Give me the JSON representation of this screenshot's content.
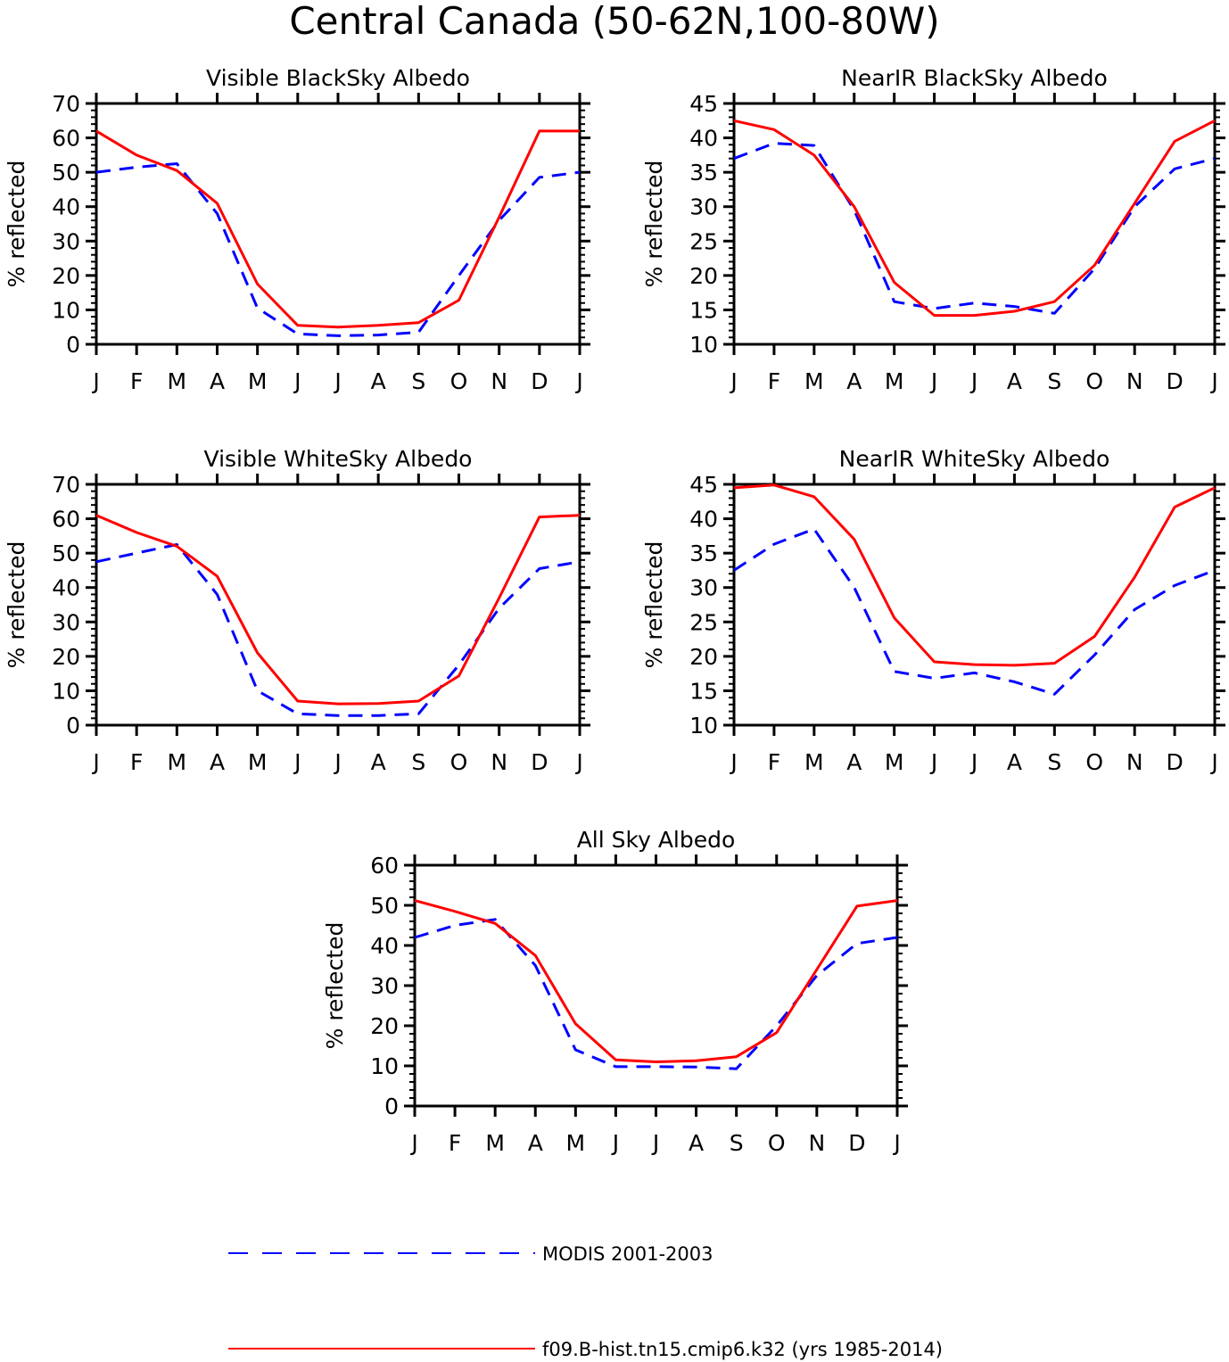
{
  "title": "Central Canada (50-62N,100-80W)",
  "legend": [
    {
      "label": "MODIS 2001-2003",
      "color": "#0000ff",
      "dash": true
    },
    {
      "label": "f09.B-hist.tn15.cmip6.k32 (yrs 1985-2014)",
      "color": "#ff0000",
      "dash": false
    }
  ],
  "chart_data": [
    {
      "type": "line",
      "title": "Visible BlackSky Albedo",
      "ylabel": "% reflected",
      "xlabel": "",
      "categories": [
        "J",
        "F",
        "M",
        "A",
        "M",
        "J",
        "J",
        "A",
        "S",
        "O",
        "N",
        "D",
        "J"
      ],
      "ylim": [
        0,
        70
      ],
      "yticks": [
        0,
        10,
        20,
        30,
        40,
        50,
        60,
        70
      ],
      "series": [
        {
          "name": "MODIS 2001-2003",
          "color": "#0000ff",
          "dash": true,
          "values": [
            50,
            51.5,
            52.5,
            38,
            10.5,
            3,
            2.5,
            2.7,
            3.5,
            20,
            36,
            48.5,
            50
          ]
        },
        {
          "name": "f09.B-hist.tn15.cmip6.k32 (yrs 1985-2014)",
          "color": "#ff0000",
          "dash": false,
          "values": [
            62,
            55,
            50.5,
            41,
            17.5,
            5.5,
            5,
            5.5,
            6.3,
            12.8,
            37,
            62,
            62
          ]
        }
      ]
    },
    {
      "type": "line",
      "title": "NearIR BlackSky Albedo",
      "ylabel": "% reflected",
      "xlabel": "",
      "categories": [
        "J",
        "F",
        "M",
        "A",
        "M",
        "J",
        "J",
        "A",
        "S",
        "O",
        "N",
        "D",
        "J"
      ],
      "ylim": [
        10,
        45
      ],
      "yticks": [
        10,
        15,
        20,
        25,
        30,
        35,
        40,
        45
      ],
      "series": [
        {
          "name": "MODIS 2001-2003",
          "color": "#0000ff",
          "dash": true,
          "values": [
            37,
            39.2,
            38.9,
            29.5,
            16.2,
            15.2,
            16,
            15.5,
            14.5,
            21,
            30,
            35.5,
            37
          ]
        },
        {
          "name": "f09.B-hist.tn15.cmip6.k32 (yrs 1985-2014)",
          "color": "#ff0000",
          "dash": false,
          "values": [
            42.5,
            41.2,
            37.5,
            30,
            19,
            14.2,
            14.2,
            14.8,
            16.2,
            21.5,
            30.5,
            39.5,
            42.5
          ]
        }
      ]
    },
    {
      "type": "line",
      "title": "Visible WhiteSky Albedo",
      "ylabel": "% reflected",
      "xlabel": "",
      "categories": [
        "J",
        "F",
        "M",
        "A",
        "M",
        "J",
        "J",
        "A",
        "S",
        "O",
        "N",
        "D",
        "J"
      ],
      "ylim": [
        0,
        70
      ],
      "yticks": [
        0,
        10,
        20,
        30,
        40,
        50,
        60,
        70
      ],
      "series": [
        {
          "name": "MODIS 2001-2003",
          "color": "#0000ff",
          "dash": true,
          "values": [
            47.5,
            50,
            52.5,
            38,
            10,
            3.3,
            2.8,
            2.8,
            3.3,
            17.5,
            34,
            45.5,
            47.5
          ]
        },
        {
          "name": "f09.B-hist.tn15.cmip6.k32 (yrs 1985-2014)",
          "color": "#ff0000",
          "dash": false,
          "values": [
            61,
            56,
            52,
            43.3,
            21,
            7,
            6.2,
            6.3,
            7,
            14.3,
            37,
            60.5,
            61
          ]
        }
      ]
    },
    {
      "type": "line",
      "title": "NearIR WhiteSky Albedo",
      "ylabel": "% reflected",
      "xlabel": "",
      "categories": [
        "J",
        "F",
        "M",
        "A",
        "M",
        "J",
        "J",
        "A",
        "S",
        "O",
        "N",
        "D",
        "J"
      ],
      "ylim": [
        10,
        45
      ],
      "yticks": [
        10,
        15,
        20,
        25,
        30,
        35,
        40,
        45
      ],
      "series": [
        {
          "name": "MODIS 2001-2003",
          "color": "#0000ff",
          "dash": true,
          "values": [
            32.5,
            36.3,
            38.5,
            30,
            17.8,
            16.8,
            17.6,
            16.3,
            14.5,
            20.2,
            26.8,
            30.3,
            32.5
          ]
        },
        {
          "name": "f09.B-hist.tn15.cmip6.k32 (yrs 1985-2014)",
          "color": "#ff0000",
          "dash": false,
          "values": [
            44.5,
            44.9,
            43.2,
            37,
            25.6,
            19.2,
            18.8,
            18.7,
            19,
            22.9,
            31.5,
            41.7,
            44.5
          ]
        }
      ]
    },
    {
      "type": "line",
      "title": "All Sky Albedo",
      "ylabel": "% reflected",
      "xlabel": "",
      "categories": [
        "J",
        "F",
        "M",
        "A",
        "M",
        "J",
        "J",
        "A",
        "S",
        "O",
        "N",
        "D",
        "J"
      ],
      "ylim": [
        0,
        60
      ],
      "yticks": [
        0,
        10,
        20,
        30,
        40,
        50,
        60
      ],
      "series": [
        {
          "name": "MODIS 2001-2003",
          "color": "#0000ff",
          "dash": true,
          "values": [
            42,
            45,
            46.5,
            35,
            14,
            9.8,
            9.8,
            9.7,
            9.3,
            20,
            32.5,
            40.5,
            42
          ]
        },
        {
          "name": "f09.B-hist.tn15.cmip6.k32 (yrs 1985-2014)",
          "color": "#ff0000",
          "dash": false,
          "values": [
            51.2,
            48.5,
            45.5,
            37.5,
            20.5,
            11.5,
            11,
            11.3,
            12.3,
            18.3,
            34,
            49.8,
            51.2
          ]
        }
      ]
    }
  ]
}
